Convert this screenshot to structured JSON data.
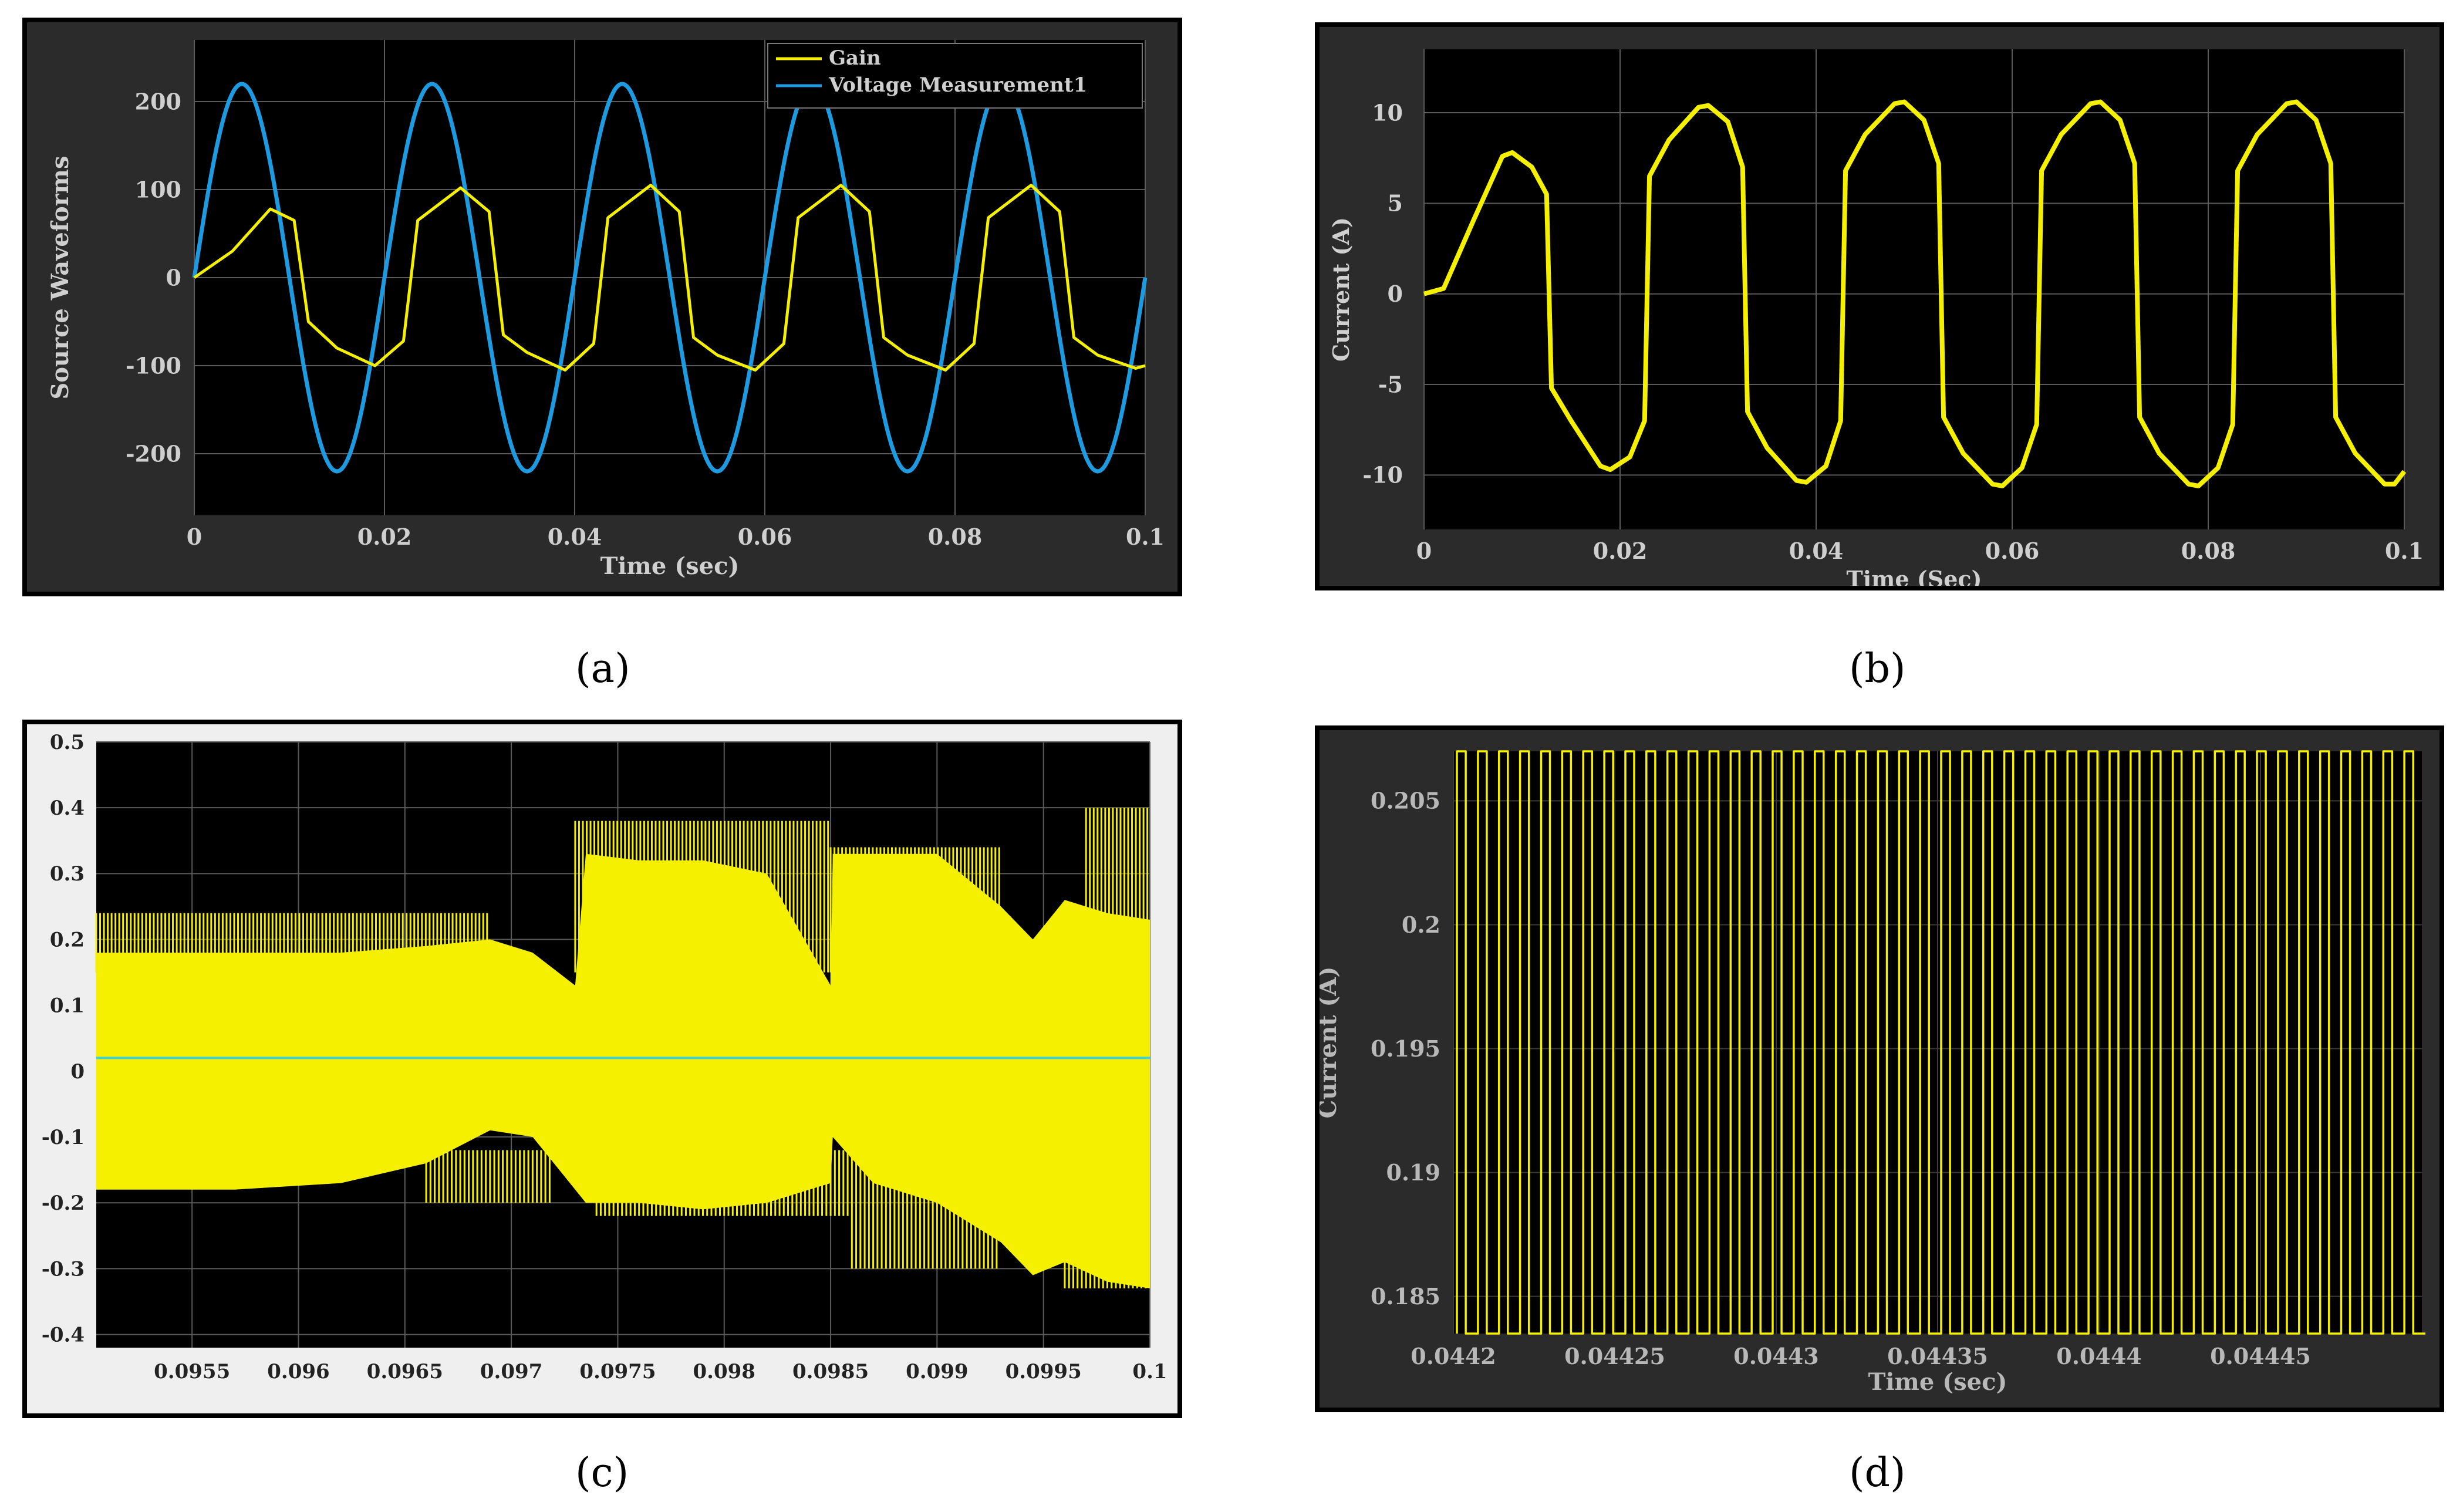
{
  "captions": [
    "(a)",
    "(b)",
    "(c)",
    "(d)"
  ],
  "colors": {
    "yellow": "#f5f000",
    "blue": "#1e9be0",
    "cyan": "#3fd2d8",
    "grid": "#5a5a5a",
    "axis_text": "#cfcfcf",
    "plot_bg": "#000000"
  },
  "chart_data": [
    {
      "id": "a",
      "type": "line",
      "title": "",
      "xlabel": "Time (sec)",
      "ylabel": "Source Waveforms",
      "xlim": [
        0,
        0.1
      ],
      "ylim": [
        -270,
        270
      ],
      "xticks": [
        0,
        0.02,
        0.04,
        0.06,
        0.08,
        0.1
      ],
      "xtick_labels": [
        "0",
        "0.02",
        "0.04",
        "0.06",
        "0.08",
        "0.1"
      ],
      "yticks": [
        -200,
        -100,
        0,
        100,
        200
      ],
      "ytick_labels": [
        "-200",
        "-100",
        "0",
        "100",
        "200"
      ],
      "legend": {
        "location": "top-right",
        "entries": [
          "Gain",
          "Voltage Measurement1"
        ]
      },
      "series": [
        {
          "name": "Gain",
          "color": "#f5f000",
          "freq_hz": 50,
          "amplitude": 105,
          "x": [
            0,
            0.004,
            0.008,
            0.0105,
            0.012,
            0.015,
            0.019,
            0.022,
            0.0235,
            0.028,
            0.031,
            0.0325,
            0.035,
            0.039,
            0.042,
            0.0435,
            0.048,
            0.051,
            0.0525,
            0.055,
            0.059,
            0.062,
            0.0635,
            0.068,
            0.071,
            0.0725,
            0.075,
            0.079,
            0.082,
            0.0835,
            0.088,
            0.091,
            0.0925,
            0.095,
            0.099,
            0.1
          ],
          "y": [
            0,
            30,
            78,
            65,
            -50,
            -80,
            -100,
            -72,
            65,
            102,
            75,
            -65,
            -85,
            -105,
            -75,
            68,
            105,
            75,
            -68,
            -88,
            -105,
            -75,
            68,
            105,
            75,
            -68,
            -88,
            -105,
            -75,
            68,
            105,
            75,
            -68,
            -88,
            -103,
            -100
          ]
        },
        {
          "name": "Voltage Measurement1",
          "color": "#1e9be0",
          "type": "sine",
          "amplitude": 220,
          "freq_hz": 50,
          "phase_deg": 0
        }
      ]
    },
    {
      "id": "b",
      "type": "line",
      "title": "",
      "xlabel": "Time (Sec)",
      "ylabel": "Current (A)",
      "xlim": [
        0,
        0.1
      ],
      "ylim": [
        -13,
        13.5
      ],
      "xticks": [
        0,
        0.02,
        0.04,
        0.06,
        0.08,
        0.1
      ],
      "xtick_labels": [
        "0",
        "0.02",
        "0.04",
        "0.06",
        "0.08",
        "0.1"
      ],
      "yticks": [
        -10,
        -5,
        0,
        5,
        10
      ],
      "ytick_labels": [
        "-10",
        "-5",
        "0",
        "5",
        "10"
      ],
      "series": [
        {
          "name": "Current",
          "color": "#f5f000",
          "x": [
            0,
            0.002,
            0.005,
            0.008,
            0.009,
            0.011,
            0.0125,
            0.013,
            0.015,
            0.018,
            0.019,
            0.021,
            0.0225,
            0.023,
            0.025,
            0.028,
            0.029,
            0.031,
            0.0325,
            0.033,
            0.035,
            0.038,
            0.039,
            0.041,
            0.0425,
            0.043,
            0.045,
            0.048,
            0.049,
            0.051,
            0.0525,
            0.053,
            0.055,
            0.058,
            0.059,
            0.061,
            0.0625,
            0.063,
            0.065,
            0.068,
            0.069,
            0.071,
            0.0725,
            0.073,
            0.075,
            0.078,
            0.079,
            0.081,
            0.0825,
            0.083,
            0.085,
            0.088,
            0.089,
            0.091,
            0.0925,
            0.093,
            0.095,
            0.098,
            0.099,
            0.1
          ],
          "y": [
            0,
            0.3,
            4,
            7.6,
            7.8,
            7,
            5.5,
            -5.2,
            -7,
            -9.5,
            -9.7,
            -9,
            -7,
            6.5,
            8.5,
            10.3,
            10.4,
            9.5,
            7,
            -6.5,
            -8.5,
            -10.3,
            -10.4,
            -9.5,
            -7,
            6.8,
            8.8,
            10.5,
            10.6,
            9.6,
            7.2,
            -6.8,
            -8.8,
            -10.5,
            -10.6,
            -9.6,
            -7.2,
            6.8,
            8.8,
            10.5,
            10.6,
            9.6,
            7.2,
            -6.8,
            -8.8,
            -10.5,
            -10.6,
            -9.6,
            -7.2,
            6.8,
            8.8,
            10.5,
            10.6,
            9.6,
            7.2,
            -6.8,
            -8.8,
            -10.5,
            -10.5,
            -9.8
          ]
        }
      ]
    },
    {
      "id": "c",
      "type": "area",
      "title": "",
      "xlabel": "",
      "ylabel": "",
      "xlim": [
        0.09505,
        0.1
      ],
      "ylim": [
        -0.42,
        0.5
      ],
      "xticks": [
        0.0955,
        0.096,
        0.0965,
        0.097,
        0.0975,
        0.098,
        0.0985,
        0.099,
        0.0995,
        0.1
      ],
      "xtick_labels": [
        "0.0955",
        "0.096",
        "0.0965",
        "0.097",
        "0.0975",
        "0.098",
        "0.0985",
        "0.099",
        "0.0995",
        "0.1"
      ],
      "yticks": [
        -0.4,
        -0.3,
        -0.2,
        -0.1,
        0,
        0.1,
        0.2,
        0.3,
        0.4,
        0.5
      ],
      "ytick_labels": [
        "-0.4",
        "-0.3",
        "-0.2",
        "-0.1",
        "0",
        "0.1",
        "0.2",
        "0.3",
        "0.4",
        "0.5"
      ],
      "envelope": {
        "name": "Current envelope",
        "color": "#f5f000",
        "x": [
          0.09505,
          0.0957,
          0.0962,
          0.0966,
          0.0969,
          0.0971,
          0.0973,
          0.09735,
          0.0976,
          0.0979,
          0.0982,
          0.0985,
          0.09851,
          0.0987,
          0.099,
          0.0993,
          0.09945,
          0.0996,
          0.0998,
          0.1
        ],
        "upper": [
          0.18,
          0.18,
          0.18,
          0.19,
          0.2,
          0.18,
          0.13,
          0.33,
          0.32,
          0.32,
          0.3,
          0.13,
          0.33,
          0.33,
          0.33,
          0.25,
          0.2,
          0.26,
          0.24,
          0.23
        ],
        "lower": [
          -0.18,
          -0.18,
          -0.17,
          -0.14,
          -0.09,
          -0.1,
          -0.18,
          -0.2,
          -0.2,
          -0.21,
          -0.2,
          -0.17,
          -0.1,
          -0.17,
          -0.2,
          -0.26,
          -0.31,
          -0.29,
          -0.32,
          -0.33
        ],
        "spike_top": 0.39,
        "spike_bottom": -0.33
      },
      "series": [
        {
          "name": "Mean",
          "color": "#3fd2d8",
          "x": [
            0.09505,
            0.1
          ],
          "y": [
            0.02,
            0.02
          ]
        }
      ]
    },
    {
      "id": "d",
      "type": "line",
      "title": "",
      "xlabel": "Time (sec)",
      "ylabel": "Current (A)",
      "xlim": [
        0.0442,
        0.0445
      ],
      "ylim": [
        0.1835,
        0.207
      ],
      "xticks": [
        0.0442,
        0.04425,
        0.0443,
        0.04435,
        0.0444,
        0.04445
      ],
      "xtick_labels": [
        "0.0442",
        "0.04425",
        "0.0443",
        "0.04435",
        "0.0444",
        "0.04445"
      ],
      "yticks": [
        0.185,
        0.19,
        0.195,
        0.2,
        0.205
      ],
      "ytick_labels": [
        "0.185",
        "0.19",
        "0.195",
        "0.2",
        "0.205"
      ],
      "series": [
        {
          "name": "Current",
          "color": "#f5f000",
          "type": "square",
          "high": 0.207,
          "low": 0.1835,
          "cycles": 46
        }
      ]
    }
  ]
}
